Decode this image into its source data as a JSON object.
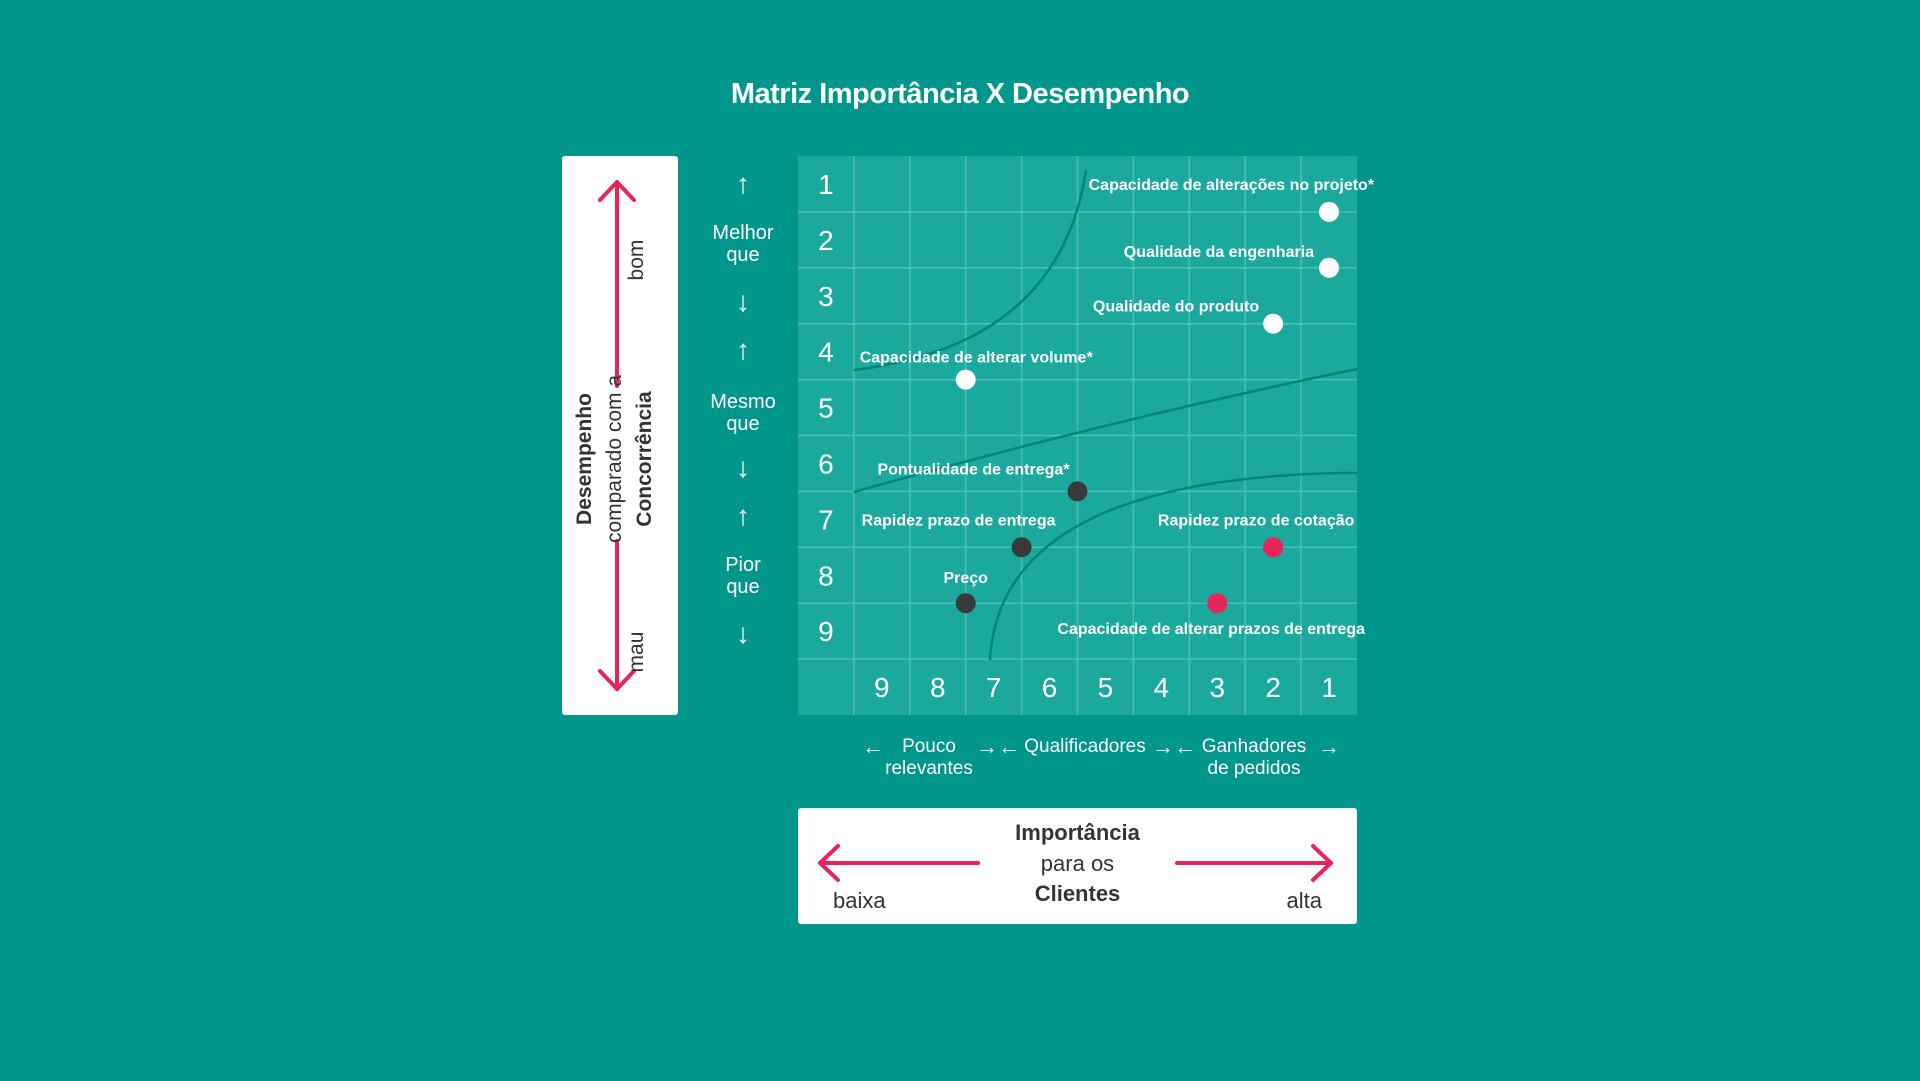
{
  "title": "Matriz Importância X Desempenho",
  "y_axis_card": {
    "line1": "Desempenho",
    "line2": "comparado com a",
    "line3": "Concorrência",
    "top_label": "bom",
    "bottom_label": "mau"
  },
  "y_groups": [
    {
      "line1": "Melhor",
      "line2": "que"
    },
    {
      "line1": "Mesmo",
      "line2": "que"
    },
    {
      "line1": "Pior",
      "line2": "que"
    }
  ],
  "x_groups": [
    {
      "line1": "Pouco",
      "line2": "relevantes"
    },
    {
      "line1": "Qualificadores",
      "line2": ""
    },
    {
      "line1": "Ganhadores",
      "line2": "de pedidos"
    }
  ],
  "x_axis_card": {
    "line1": "Importância",
    "line2": "para os",
    "line3": "Clientes",
    "left_label": "baixa",
    "right_label": "alta"
  },
  "colors": {
    "background": "#00968c",
    "grid_fill": "#1aa99c",
    "grid_line": "#4dbfb3",
    "accent": "#e8245a",
    "dark_point": "#3a3a3a",
    "white_point": "#ffffff"
  },
  "chart_data": {
    "type": "scatter",
    "x_ticks": [
      "9",
      "8",
      "7",
      "6",
      "5",
      "4",
      "3",
      "2",
      "1"
    ],
    "y_ticks": [
      "1",
      "2",
      "3",
      "4",
      "5",
      "6",
      "7",
      "8",
      "9"
    ],
    "x_direction": "reversed",
    "xlim": [
      9,
      1
    ],
    "ylim": [
      1,
      9
    ],
    "grid": true,
    "points": [
      {
        "label": "Capacidade de alterações no projeto*",
        "x": 1,
        "y": 2,
        "color": "white",
        "label_anchor": "end"
      },
      {
        "label": "Qualidade da engenharia",
        "x": 1,
        "y": 3,
        "color": "white",
        "label_anchor": "end"
      },
      {
        "label": "Qualidade do produto",
        "x": 2,
        "y": 4,
        "color": "white",
        "label_anchor": "end"
      },
      {
        "label": "Capacidade de alterar volume*",
        "x": 7.5,
        "y": 5,
        "color": "white",
        "label_anchor": "start"
      },
      {
        "label": "Pontualidade de entrega*",
        "x": 5.5,
        "y": 7,
        "color": "dark",
        "label_anchor": "end"
      },
      {
        "label": "Rapidez prazo de entrega",
        "x": 6.5,
        "y": 8,
        "color": "dark",
        "label_anchor": "middle"
      },
      {
        "label": "Rapidez prazo de cotação",
        "x": 2,
        "y": 8,
        "color": "red",
        "label_anchor": "middle"
      },
      {
        "label": "Preço",
        "x": 7.5,
        "y": 9,
        "color": "dark",
        "label_anchor": "middle"
      },
      {
        "label": "Capacidade de alterar prazos de entrega",
        "x": 3,
        "y": 9,
        "color": "red",
        "label_anchor": "middle-below"
      }
    ]
  }
}
